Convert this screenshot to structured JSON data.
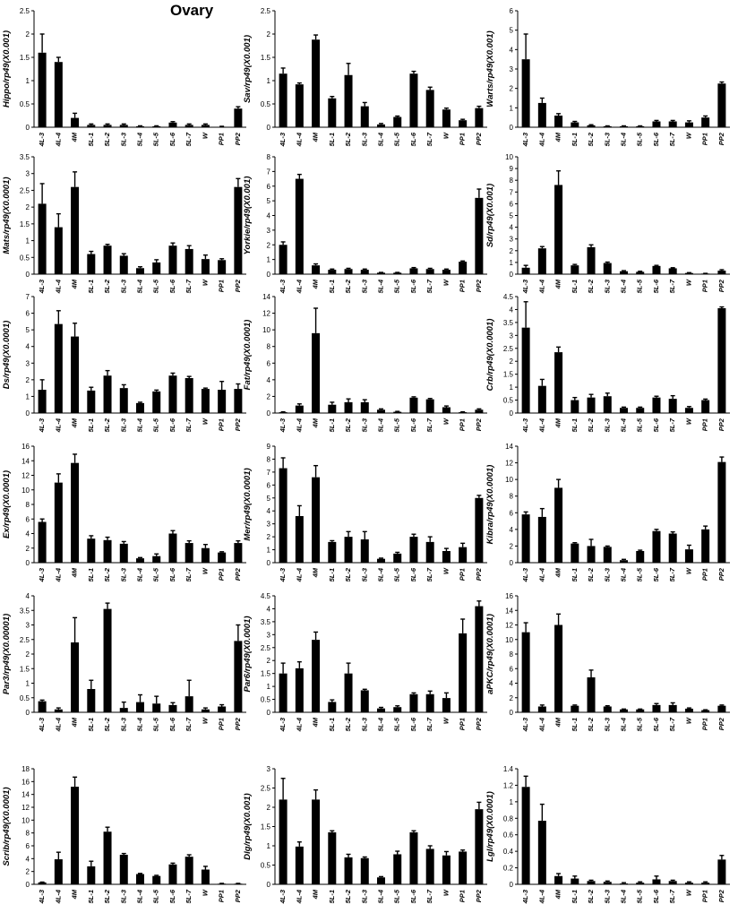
{
  "figure_title": "Ovary",
  "chart_data": [
    {
      "type": "bar",
      "ylabel": "Hippo/rp49(X0.001)",
      "ylim": [
        0,
        2.5
      ],
      "ytick_step": 0.5,
      "yticks": [
        "0",
        "0.5",
        "1",
        "1.5",
        "2",
        "2.5"
      ],
      "categories": [
        "4L-3",
        "4L-4",
        "4M",
        "5L-1",
        "5L-2",
        "5L-3",
        "5L-4",
        "5L-5",
        "5L-6",
        "5L-7",
        "W",
        "PP1",
        "PP2"
      ],
      "values": [
        1.6,
        1.4,
        0.2,
        0.05,
        0.05,
        0.05,
        0.02,
        0.02,
        0.1,
        0.05,
        0.05,
        0.01,
        0.4
      ],
      "errors": [
        0.4,
        0.1,
        0.1,
        0.02,
        0.02,
        0.02,
        0.01,
        0.01,
        0.02,
        0.02,
        0.02,
        0.01,
        0.04
      ]
    },
    {
      "type": "bar",
      "ylabel": "Sav/rp49(X0.001)",
      "ylim": [
        0,
        2.5
      ],
      "ytick_step": 0.5,
      "yticks": [
        "0",
        "0.5",
        "1",
        "1.5",
        "2",
        "2.5"
      ],
      "categories": [
        "4L-3",
        "4L-4",
        "4M",
        "5L-1",
        "5L-2",
        "5L-3",
        "5L-4",
        "5L-5",
        "5L-6",
        "5L-7",
        "W",
        "PP1",
        "PP2"
      ],
      "values": [
        1.15,
        0.92,
        1.88,
        0.62,
        1.12,
        0.45,
        0.06,
        0.22,
        1.15,
        0.8,
        0.38,
        0.15,
        0.41
      ],
      "errors": [
        0.12,
        0.03,
        0.1,
        0.04,
        0.25,
        0.08,
        0.02,
        0.02,
        0.05,
        0.06,
        0.03,
        0.02,
        0.04
      ]
    },
    {
      "type": "bar",
      "ylabel": "Warts/rp49(X0.001)",
      "ylim": [
        0,
        6
      ],
      "ytick_step": 1,
      "yticks": [
        "0",
        "1",
        "2",
        "3",
        "4",
        "5",
        "6"
      ],
      "categories": [
        "4L-3",
        "4L-4",
        "4M",
        "5L-1",
        "5L-2",
        "5L-3",
        "5L-4",
        "5L-5",
        "5L-6",
        "5L-7",
        "W",
        "PP1",
        "PP2"
      ],
      "values": [
        3.5,
        1.25,
        0.6,
        0.25,
        0.1,
        0.05,
        0.05,
        0.05,
        0.3,
        0.3,
        0.25,
        0.5,
        2.25
      ],
      "errors": [
        1.3,
        0.25,
        0.1,
        0.05,
        0.03,
        0.02,
        0.02,
        0.02,
        0.05,
        0.05,
        0.08,
        0.08,
        0.08
      ]
    },
    {
      "type": "bar",
      "ylabel": "Mats/rp49(X0.0001)",
      "ylim": [
        0,
        3.5
      ],
      "ytick_step": 0.5,
      "yticks": [
        "0",
        "0.5",
        "1",
        "1.5",
        "2",
        "2.5",
        "3",
        "3.5"
      ],
      "categories": [
        "4L-3",
        "4L-4",
        "4M",
        "5L-1",
        "5L-2",
        "5L-3",
        "5L-4",
        "5L-5",
        "5L-6",
        "5L-7",
        "W",
        "PP1",
        "PP2"
      ],
      "values": [
        2.1,
        1.4,
        2.6,
        0.6,
        0.85,
        0.55,
        0.18,
        0.35,
        0.85,
        0.75,
        0.45,
        0.42,
        2.6
      ],
      "errors": [
        0.6,
        0.4,
        0.45,
        0.08,
        0.04,
        0.06,
        0.04,
        0.08,
        0.08,
        0.1,
        0.12,
        0.04,
        0.25
      ]
    },
    {
      "type": "bar",
      "ylabel": "Yorkie/rp49(X0.001)",
      "ylim": [
        0,
        8
      ],
      "ytick_step": 1,
      "yticks": [
        "0",
        "1",
        "2",
        "3",
        "4",
        "5",
        "6",
        "7",
        "8"
      ],
      "categories": [
        "4L-3",
        "4L-4",
        "4M",
        "5L-1",
        "5L-2",
        "5L-3",
        "5L-4",
        "5L-5",
        "5L-6",
        "5L-7",
        "W",
        "PP1",
        "PP2"
      ],
      "values": [
        2.0,
        6.5,
        0.6,
        0.3,
        0.35,
        0.3,
        0.1,
        0.1,
        0.4,
        0.35,
        0.3,
        0.85,
        5.2
      ],
      "errors": [
        0.2,
        0.3,
        0.1,
        0.05,
        0.05,
        0.05,
        0.02,
        0.02,
        0.05,
        0.05,
        0.05,
        0.05,
        0.6
      ]
    },
    {
      "type": "bar",
      "ylabel": "Sd/rp49(X0.001)",
      "ylim": [
        0,
        10
      ],
      "ytick_step": 1,
      "yticks": [
        "0",
        "1",
        "2",
        "3",
        "4",
        "5",
        "6",
        "7",
        "8",
        "9",
        "10"
      ],
      "categories": [
        "4L-3",
        "4L-4",
        "4M",
        "5L-1",
        "5L-2",
        "5L-3",
        "5L-4",
        "5L-5",
        "5L-6",
        "5L-7",
        "W",
        "PP1",
        "PP2"
      ],
      "values": [
        0.55,
        2.2,
        7.6,
        0.75,
        2.3,
        0.95,
        0.25,
        0.2,
        0.7,
        0.5,
        0.1,
        0.05,
        0.3
      ],
      "errors": [
        0.2,
        0.15,
        1.2,
        0.08,
        0.2,
        0.08,
        0.05,
        0.05,
        0.05,
        0.05,
        0.03,
        0.02,
        0.08
      ]
    },
    {
      "type": "bar",
      "ylabel": "Ds/rp49(X0.0001)",
      "ylim": [
        0,
        7
      ],
      "ytick_step": 1,
      "yticks": [
        "0",
        "1",
        "2",
        "3",
        "4",
        "5",
        "6",
        "7"
      ],
      "categories": [
        "4L-3",
        "4L-4",
        "4M",
        "5L-1",
        "5L-2",
        "5L-3",
        "5L-4",
        "5L-5",
        "5L-6",
        "5L-7",
        "W",
        "PP1",
        "PP2"
      ],
      "values": [
        1.4,
        5.35,
        4.6,
        1.35,
        2.25,
        1.5,
        0.6,
        1.3,
        2.25,
        2.1,
        1.45,
        1.4,
        1.45
      ],
      "errors": [
        0.6,
        0.8,
        0.8,
        0.2,
        0.3,
        0.2,
        0.05,
        0.08,
        0.15,
        0.1,
        0.05,
        0.5,
        0.3
      ]
    },
    {
      "type": "bar",
      "ylabel": "Fat/rp49(X0.0001)",
      "ylim": [
        0,
        14
      ],
      "ytick_step": 2,
      "yticks": [
        "0",
        "2",
        "4",
        "6",
        "8",
        "10",
        "12",
        "14"
      ],
      "categories": [
        "4L-3",
        "4L-4",
        "4M",
        "5L-1",
        "5L-2",
        "5L-3",
        "5L-4",
        "5L-5",
        "5L-6",
        "5L-7",
        "W",
        "PP1",
        "PP2"
      ],
      "values": [
        0.1,
        0.9,
        9.6,
        1.0,
        1.3,
        1.3,
        0.4,
        0.15,
        1.85,
        1.65,
        0.7,
        0.1,
        0.4
      ],
      "errors": [
        0.05,
        0.2,
        3.0,
        0.3,
        0.4,
        0.3,
        0.1,
        0.05,
        0.1,
        0.1,
        0.15,
        0.05,
        0.1
      ]
    },
    {
      "type": "bar",
      "ylabel": "Crb/rp49(X0.0001)",
      "ylim": [
        0,
        4.5
      ],
      "ytick_step": 0.5,
      "yticks": [
        "0",
        "0.5",
        "1",
        "1.5",
        "2",
        "2.5",
        "3",
        "3.5",
        "4",
        "4.5"
      ],
      "categories": [
        "4L-3",
        "4L-4",
        "4M",
        "5L-1",
        "5L-2",
        "5L-3",
        "5L-4",
        "5L-5",
        "5L-6",
        "5L-7",
        "W",
        "PP1",
        "PP2"
      ],
      "values": [
        3.3,
        1.05,
        2.35,
        0.5,
        0.6,
        0.65,
        0.2,
        0.2,
        0.6,
        0.55,
        0.2,
        0.5,
        4.05
      ],
      "errors": [
        1.0,
        0.25,
        0.2,
        0.1,
        0.12,
        0.12,
        0.03,
        0.03,
        0.05,
        0.12,
        0.05,
        0.04,
        0.05
      ]
    },
    {
      "type": "bar",
      "ylabel": "Ex/rp49(X0.0001)",
      "ylim": [
        0,
        16
      ],
      "ytick_step": 2,
      "yticks": [
        "0",
        "2",
        "4",
        "6",
        "8",
        "10",
        "12",
        "14",
        "16"
      ],
      "categories": [
        "4L-3",
        "4L-4",
        "4M",
        "5L-1",
        "5L-2",
        "5L-3",
        "5L-4",
        "5L-5",
        "5L-6",
        "5L-7",
        "W",
        "PP1",
        "PP2"
      ],
      "values": [
        5.6,
        11.0,
        13.7,
        3.3,
        3.1,
        2.6,
        0.6,
        0.9,
        4.0,
        2.7,
        2.0,
        1.4,
        2.7
      ],
      "errors": [
        0.4,
        1.2,
        1.2,
        0.4,
        0.4,
        0.3,
        0.1,
        0.3,
        0.4,
        0.3,
        0.5,
        0.1,
        0.3
      ]
    },
    {
      "type": "bar",
      "ylabel": "Mer/rp49(X0.0001)",
      "ylim": [
        0,
        9
      ],
      "ytick_step": 1,
      "yticks": [
        "0",
        "1",
        "2",
        "3",
        "4",
        "5",
        "6",
        "7",
        "8",
        "9"
      ],
      "categories": [
        "4L-3",
        "4L-4",
        "4M",
        "5L-1",
        "5L-2",
        "5L-3",
        "5L-4",
        "5L-5",
        "5L-6",
        "5L-7",
        "W",
        "PP1",
        "PP2"
      ],
      "values": [
        7.3,
        3.6,
        6.6,
        1.6,
        2.0,
        1.8,
        0.3,
        0.7,
        2.0,
        1.6,
        0.9,
        1.2,
        5.0
      ],
      "errors": [
        0.8,
        0.8,
        0.9,
        0.1,
        0.4,
        0.6,
        0.05,
        0.1,
        0.2,
        0.4,
        0.2,
        0.3,
        0.2
      ]
    },
    {
      "type": "bar",
      "ylabel": "Kibra/rp49(X0.0001)",
      "ylim": [
        0,
        14
      ],
      "ytick_step": 2,
      "yticks": [
        "0",
        "2",
        "4",
        "6",
        "8",
        "10",
        "12",
        "14"
      ],
      "categories": [
        "4L-3",
        "4L-4",
        "4M",
        "5L-1",
        "5L-2",
        "5L-3",
        "5L-4",
        "5L-5",
        "5L-6",
        "5L-7",
        "W",
        "PP1",
        "PP2"
      ],
      "values": [
        5.8,
        5.5,
        9.0,
        2.3,
        2.0,
        1.9,
        0.3,
        1.4,
        3.8,
        3.5,
        1.6,
        4.0,
        12.1
      ],
      "errors": [
        0.3,
        1.0,
        1.0,
        0.1,
        0.8,
        0.1,
        0.1,
        0.1,
        0.2,
        0.2,
        0.5,
        0.4,
        0.6
      ]
    },
    {
      "type": "bar",
      "ylabel": "Par3/rp49(X0.00001)",
      "ylim": [
        0,
        4
      ],
      "ytick_step": 0.5,
      "yticks": [
        "0",
        "0.5",
        "1",
        "1.5",
        "2",
        "2.5",
        "3",
        "3.5",
        "4"
      ],
      "categories": [
        "4L-3",
        "4L-4",
        "4M",
        "5L-1",
        "5L-2",
        "5L-3",
        "5L-4",
        "5L-5",
        "5L-6",
        "5L-7",
        "W",
        "PP1",
        "PP2"
      ],
      "values": [
        0.38,
        0.1,
        2.4,
        0.8,
        3.55,
        0.15,
        0.35,
        0.3,
        0.25,
        0.55,
        0.1,
        0.2,
        2.45
      ],
      "errors": [
        0.04,
        0.05,
        0.85,
        0.3,
        0.2,
        0.2,
        0.25,
        0.25,
        0.08,
        0.55,
        0.05,
        0.06,
        0.55
      ]
    },
    {
      "type": "bar",
      "ylabel": "Par6/rp49(X0.0001)",
      "ylim": [
        0,
        4.5
      ],
      "ytick_step": 0.5,
      "yticks": [
        "0",
        "0.5",
        "1",
        "1.5",
        "2",
        "2.5",
        "3",
        "3.5",
        "4",
        "4.5"
      ],
      "categories": [
        "4L-3",
        "4L-4",
        "4M",
        "5L-1",
        "5L-2",
        "5L-3",
        "5L-4",
        "5L-5",
        "5L-6",
        "5L-7",
        "W",
        "PP1",
        "PP2"
      ],
      "values": [
        1.5,
        1.7,
        2.8,
        0.4,
        1.5,
        0.85,
        0.15,
        0.2,
        0.7,
        0.7,
        0.55,
        3.05,
        4.1
      ],
      "errors": [
        0.4,
        0.25,
        0.3,
        0.08,
        0.4,
        0.04,
        0.04,
        0.05,
        0.05,
        0.12,
        0.2,
        0.55,
        0.2
      ]
    },
    {
      "type": "bar",
      "ylabel": "aPKC/rp49(X0.0001)",
      "ylim": [
        0,
        16
      ],
      "ytick_step": 2,
      "yticks": [
        "0",
        "2",
        "4",
        "6",
        "8",
        "10",
        "12",
        "14",
        "16"
      ],
      "categories": [
        "4L-3",
        "4L-4",
        "4M",
        "5L-1",
        "5L-2",
        "5L-3",
        "5L-4",
        "5L-5",
        "5L-6",
        "5L-7",
        "W",
        "PP1",
        "PP2"
      ],
      "values": [
        11.0,
        0.8,
        12.0,
        0.9,
        4.8,
        0.8,
        0.4,
        0.4,
        1.0,
        1.0,
        0.5,
        0.3,
        0.9
      ],
      "errors": [
        1.3,
        0.2,
        1.5,
        0.1,
        1.0,
        0.1,
        0.05,
        0.05,
        0.2,
        0.3,
        0.1,
        0.05,
        0.1
      ]
    },
    {
      "type": "bar",
      "ylabel": "Scrib/rp49(X0.0001)",
      "ylim": [
        0,
        18
      ],
      "ytick_step": 2,
      "yticks": [
        "0",
        "2",
        "4",
        "6",
        "8",
        "10",
        "12",
        "14",
        "16",
        "18"
      ],
      "categories": [
        "4L-3",
        "4L-4",
        "4M",
        "5L-1",
        "5L-2",
        "5L-3",
        "5L-4",
        "5L-5",
        "5L-6",
        "5L-7",
        "W",
        "PP1",
        "PP2"
      ],
      "values": [
        0.3,
        3.9,
        15.2,
        2.8,
        8.2,
        4.6,
        1.6,
        1.3,
        3.1,
        4.3,
        2.3,
        0.1,
        0.1
      ],
      "errors": [
        0.05,
        1.1,
        1.5,
        0.8,
        0.7,
        0.2,
        0.1,
        0.1,
        0.2,
        0.3,
        0.5,
        0.05,
        0.05
      ]
    },
    {
      "type": "bar",
      "ylabel": "Dlg/rp49(X0.001)",
      "ylim": [
        0,
        3
      ],
      "ytick_step": 0.5,
      "yticks": [
        "0",
        "0.5",
        "1",
        "1.5",
        "2",
        "2.5",
        "3"
      ],
      "categories": [
        "4L-3",
        "4L-4",
        "4M",
        "5L-1",
        "5L-2",
        "5L-3",
        "5L-4",
        "5L-5",
        "5L-6",
        "5L-7",
        "W",
        "PP1",
        "PP2"
      ],
      "values": [
        2.2,
        0.98,
        2.2,
        1.35,
        0.7,
        0.68,
        0.18,
        0.78,
        1.35,
        0.92,
        0.75,
        0.85,
        1.95
      ],
      "errors": [
        0.55,
        0.12,
        0.25,
        0.04,
        0.08,
        0.03,
        0.02,
        0.08,
        0.04,
        0.08,
        0.1,
        0.04,
        0.18
      ]
    },
    {
      "type": "bar",
      "ylabel": "Lgl/rp49(X0.0001)",
      "ylim": [
        0,
        1.4
      ],
      "ytick_step": 0.2,
      "yticks": [
        "0",
        "0.2",
        "0.4",
        "0.6",
        "0.8",
        "1",
        "1.2",
        "1.4"
      ],
      "categories": [
        "4L-3",
        "4L-4",
        "4M",
        "5L-1",
        "5L-2",
        "5L-3",
        "5L-4",
        "5L-5",
        "5L-6",
        "5L-7",
        "W",
        "PP1",
        "PP2"
      ],
      "values": [
        1.18,
        0.77,
        0.1,
        0.07,
        0.04,
        0.03,
        0.01,
        0.02,
        0.06,
        0.04,
        0.02,
        0.02,
        0.3
      ],
      "errors": [
        0.13,
        0.2,
        0.03,
        0.03,
        0.01,
        0.01,
        0.01,
        0.01,
        0.04,
        0.01,
        0.01,
        0.01,
        0.05
      ]
    }
  ]
}
